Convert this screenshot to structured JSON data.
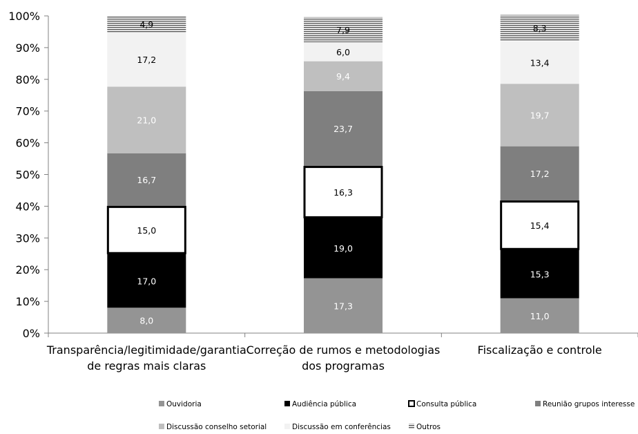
{
  "chart_data": {
    "type": "bar",
    "stacked": true,
    "percent_axis": true,
    "ylim": [
      0,
      100
    ],
    "yticks": [
      "0%",
      "10%",
      "20%",
      "30%",
      "40%",
      "50%",
      "60%",
      "70%",
      "80%",
      "90%",
      "100%"
    ],
    "categories": [
      [
        "Transparência/legitimidade/garantia",
        "de regras mais claras"
      ],
      [
        "Correção de rumos e metodologias",
        "dos programas"
      ],
      [
        "Fiscalização e controle"
      ]
    ],
    "series": [
      {
        "name": "Ouvidoria",
        "values": [
          8.0,
          17.3,
          11.0
        ],
        "labels": [
          "8,0",
          "17,3",
          "11,0"
        ],
        "color": "#949494",
        "label_color": "#ffffff"
      },
      {
        "name": "Audiência pública",
        "values": [
          17.0,
          19.0,
          15.3
        ],
        "labels": [
          "17,0",
          "19,0",
          "15,3"
        ],
        "color": "#000000",
        "label_color": "#ffffff"
      },
      {
        "name": "Consulta pública",
        "values": [
          15.0,
          16.3,
          15.4
        ],
        "labels": [
          "15,0",
          "16,3",
          "15,4"
        ],
        "color": "#ffffff",
        "label_color": "#000000",
        "outlined": true
      },
      {
        "name": "Reunião grupos interesse",
        "values": [
          16.7,
          23.7,
          17.2
        ],
        "labels": [
          "16,7",
          "23,7",
          "17,2"
        ],
        "color": "#7f7f7f",
        "label_color": "#ffffff"
      },
      {
        "name": "Discussão conselho setorial",
        "values": [
          21.0,
          9.4,
          19.7
        ],
        "labels": [
          "21,0",
          "9,4",
          "19,7"
        ],
        "color": "#bfbfbf",
        "label_color": "#ffffff"
      },
      {
        "name": "Discussão em conferências",
        "values": [
          17.2,
          6.0,
          13.4
        ],
        "labels": [
          "17,2",
          "6,0",
          "13,4"
        ],
        "color": "#f2f2f2",
        "label_color": "#000000"
      },
      {
        "name": "Outros",
        "values": [
          4.9,
          7.9,
          8.3
        ],
        "labels": [
          "4,9",
          "7,9",
          "8,3"
        ],
        "color": "#ffffff",
        "label_color": "#000000",
        "pattern": "horizontal-lines"
      }
    ],
    "legend_position": "bottom",
    "grid": false
  }
}
